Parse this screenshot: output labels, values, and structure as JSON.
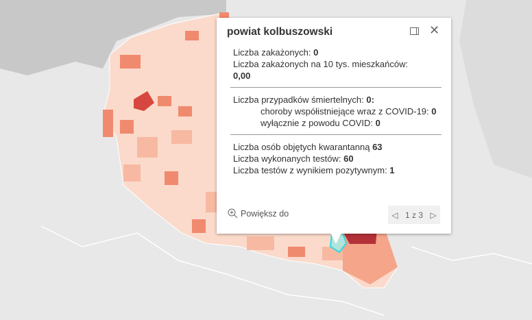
{
  "popup": {
    "title": "powiat kolbuszowski",
    "infected_label": "Liczba zakażonych: ",
    "infected_value": "0",
    "per10k_label": "Liczba zakażonych na 10 tys. mieszkańców:",
    "per10k_value": "0,00",
    "deaths_label": "Liczba przypadków śmiertelnych: ",
    "deaths_value": "0:",
    "comorbid_label": "choroby współistniejące wraz z COVID-19: ",
    "comorbid_value": "0",
    "covid_only_label": "wyłącznie z powodu COVID: ",
    "covid_only_value": "0",
    "quarantine_label": "Liczba osób objętych kwarantanną ",
    "quarantine_value": "63",
    "tests_label": "Liczba wykonanych testów: ",
    "tests_value": "60",
    "positive_label": "Liczba testów z wynikiem pozytywnym: ",
    "positive_value": "1",
    "zoom_label": "Powiększ do",
    "pager": "1 z 3",
    "dock_icon": "dock-icon",
    "close_icon": "close-icon"
  },
  "colors": {
    "selected": "#b2e4dc",
    "selected_border": "#33d9e0",
    "high": "#b5313a",
    "mid": "#f08a6f",
    "low": "#fbd8c8"
  }
}
